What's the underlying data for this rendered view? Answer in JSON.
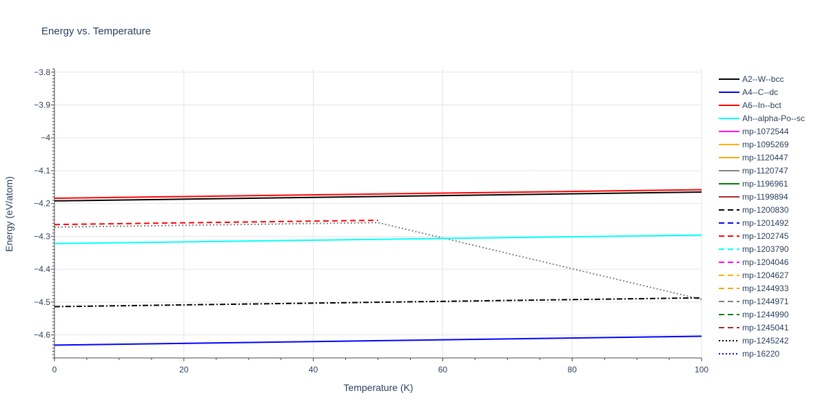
{
  "chart_data": {
    "type": "line",
    "title": "Energy vs. Temperature",
    "xlabel": "Temperature (K)",
    "ylabel": "Energy (eV/atom)",
    "xlim": [
      0,
      100
    ],
    "ylim": [
      -4.67,
      -3.79
    ],
    "x_ticks": [
      0,
      20,
      40,
      60,
      80,
      100
    ],
    "y_ticks": [
      -3.8,
      -3.9,
      -4,
      -4.1,
      -4.2,
      -4.3,
      -4.4,
      -4.5,
      -4.6
    ],
    "y_tick_labels": [
      "−3.8",
      "−3.9",
      "−4",
      "−4.1",
      "−4.2",
      "−4.3",
      "−4.4",
      "−4.5",
      "−4.6"
    ],
    "grid": true,
    "legend_position": "right",
    "series": [
      {
        "name": "A2--W--bcc",
        "color": "#000000",
        "dash": "solid",
        "x": [
          0,
          100
        ],
        "y": [
          -4.192,
          -4.165
        ]
      },
      {
        "name": "A4--C--dc",
        "color": "#0000ff",
        "dash": "solid",
        "x": [
          0,
          100
        ],
        "y": [
          -4.631,
          -4.604
        ]
      },
      {
        "name": "A6--In--bct",
        "color": "#ff0000",
        "dash": "solid",
        "x": [
          0,
          100
        ],
        "y": [
          -4.184,
          -4.158
        ]
      },
      {
        "name": "Ah--alpha-Po--sc",
        "color": "#00ffff",
        "dash": "solid",
        "x": [
          0,
          100
        ],
        "y": [
          -4.322,
          -4.296
        ]
      },
      {
        "name": "mp-1072544",
        "color": "#ff00ff",
        "dash": "solid",
        "x": [],
        "y": []
      },
      {
        "name": "mp-1095269",
        "color": "#ffb000",
        "dash": "solid",
        "x": [],
        "y": []
      },
      {
        "name": "mp-1120447",
        "color": "#ffa500",
        "dash": "solid",
        "x": [],
        "y": []
      },
      {
        "name": "mp-1120747",
        "color": "#808080",
        "dash": "solid",
        "x": [],
        "y": []
      },
      {
        "name": "mp-1196961",
        "color": "#008000",
        "dash": "solid",
        "x": [],
        "y": []
      },
      {
        "name": "mp-1199894",
        "color": "#a52a2a",
        "dash": "solid",
        "x": [],
        "y": []
      },
      {
        "name": "mp-1200830",
        "color": "#000000",
        "dash": "dash",
        "x": [],
        "y": []
      },
      {
        "name": "mp-1201492",
        "color": "#0000ff",
        "dash": "dash",
        "x": [],
        "y": []
      },
      {
        "name": "mp-1202745",
        "color": "#ff0000",
        "dash": "dash",
        "x": [
          0,
          50
        ],
        "y": [
          -4.264,
          -4.251
        ]
      },
      {
        "name": "mp-1203790",
        "color": "#00ffff",
        "dash": "dash",
        "x": [],
        "y": []
      },
      {
        "name": "mp-1204046",
        "color": "#ff00ff",
        "dash": "dash",
        "x": [],
        "y": []
      },
      {
        "name": "mp-1204627",
        "color": "#ffb000",
        "dash": "dash",
        "x": [],
        "y": []
      },
      {
        "name": "mp-1244933",
        "color": "#ffa500",
        "dash": "dash",
        "x": [],
        "y": []
      },
      {
        "name": "mp-1244971",
        "color": "#808080",
        "dash": "dash",
        "x": [],
        "y": []
      },
      {
        "name": "mp-1244990",
        "color": "#008000",
        "dash": "dash",
        "x": [],
        "y": []
      },
      {
        "name": "mp-1245041",
        "color": "#a52a2a",
        "dash": "dash",
        "x": [],
        "y": []
      },
      {
        "name": "mp-1245242",
        "color": "#000000",
        "dash": "dot",
        "x": [],
        "y": []
      },
      {
        "name": "mp-16220",
        "color": "#0000ff",
        "dash": "dot",
        "x": [],
        "y": []
      }
    ],
    "unlisted_series": [
      {
        "color": "#808080",
        "dash": "dot",
        "x": [
          0,
          50,
          100
        ],
        "y": [
          -4.272,
          -4.258,
          -4.492
        ]
      },
      {
        "color": "#000000",
        "dash": "dashdot",
        "x": [
          0,
          100
        ],
        "y": [
          -4.514,
          -4.487
        ]
      }
    ]
  }
}
